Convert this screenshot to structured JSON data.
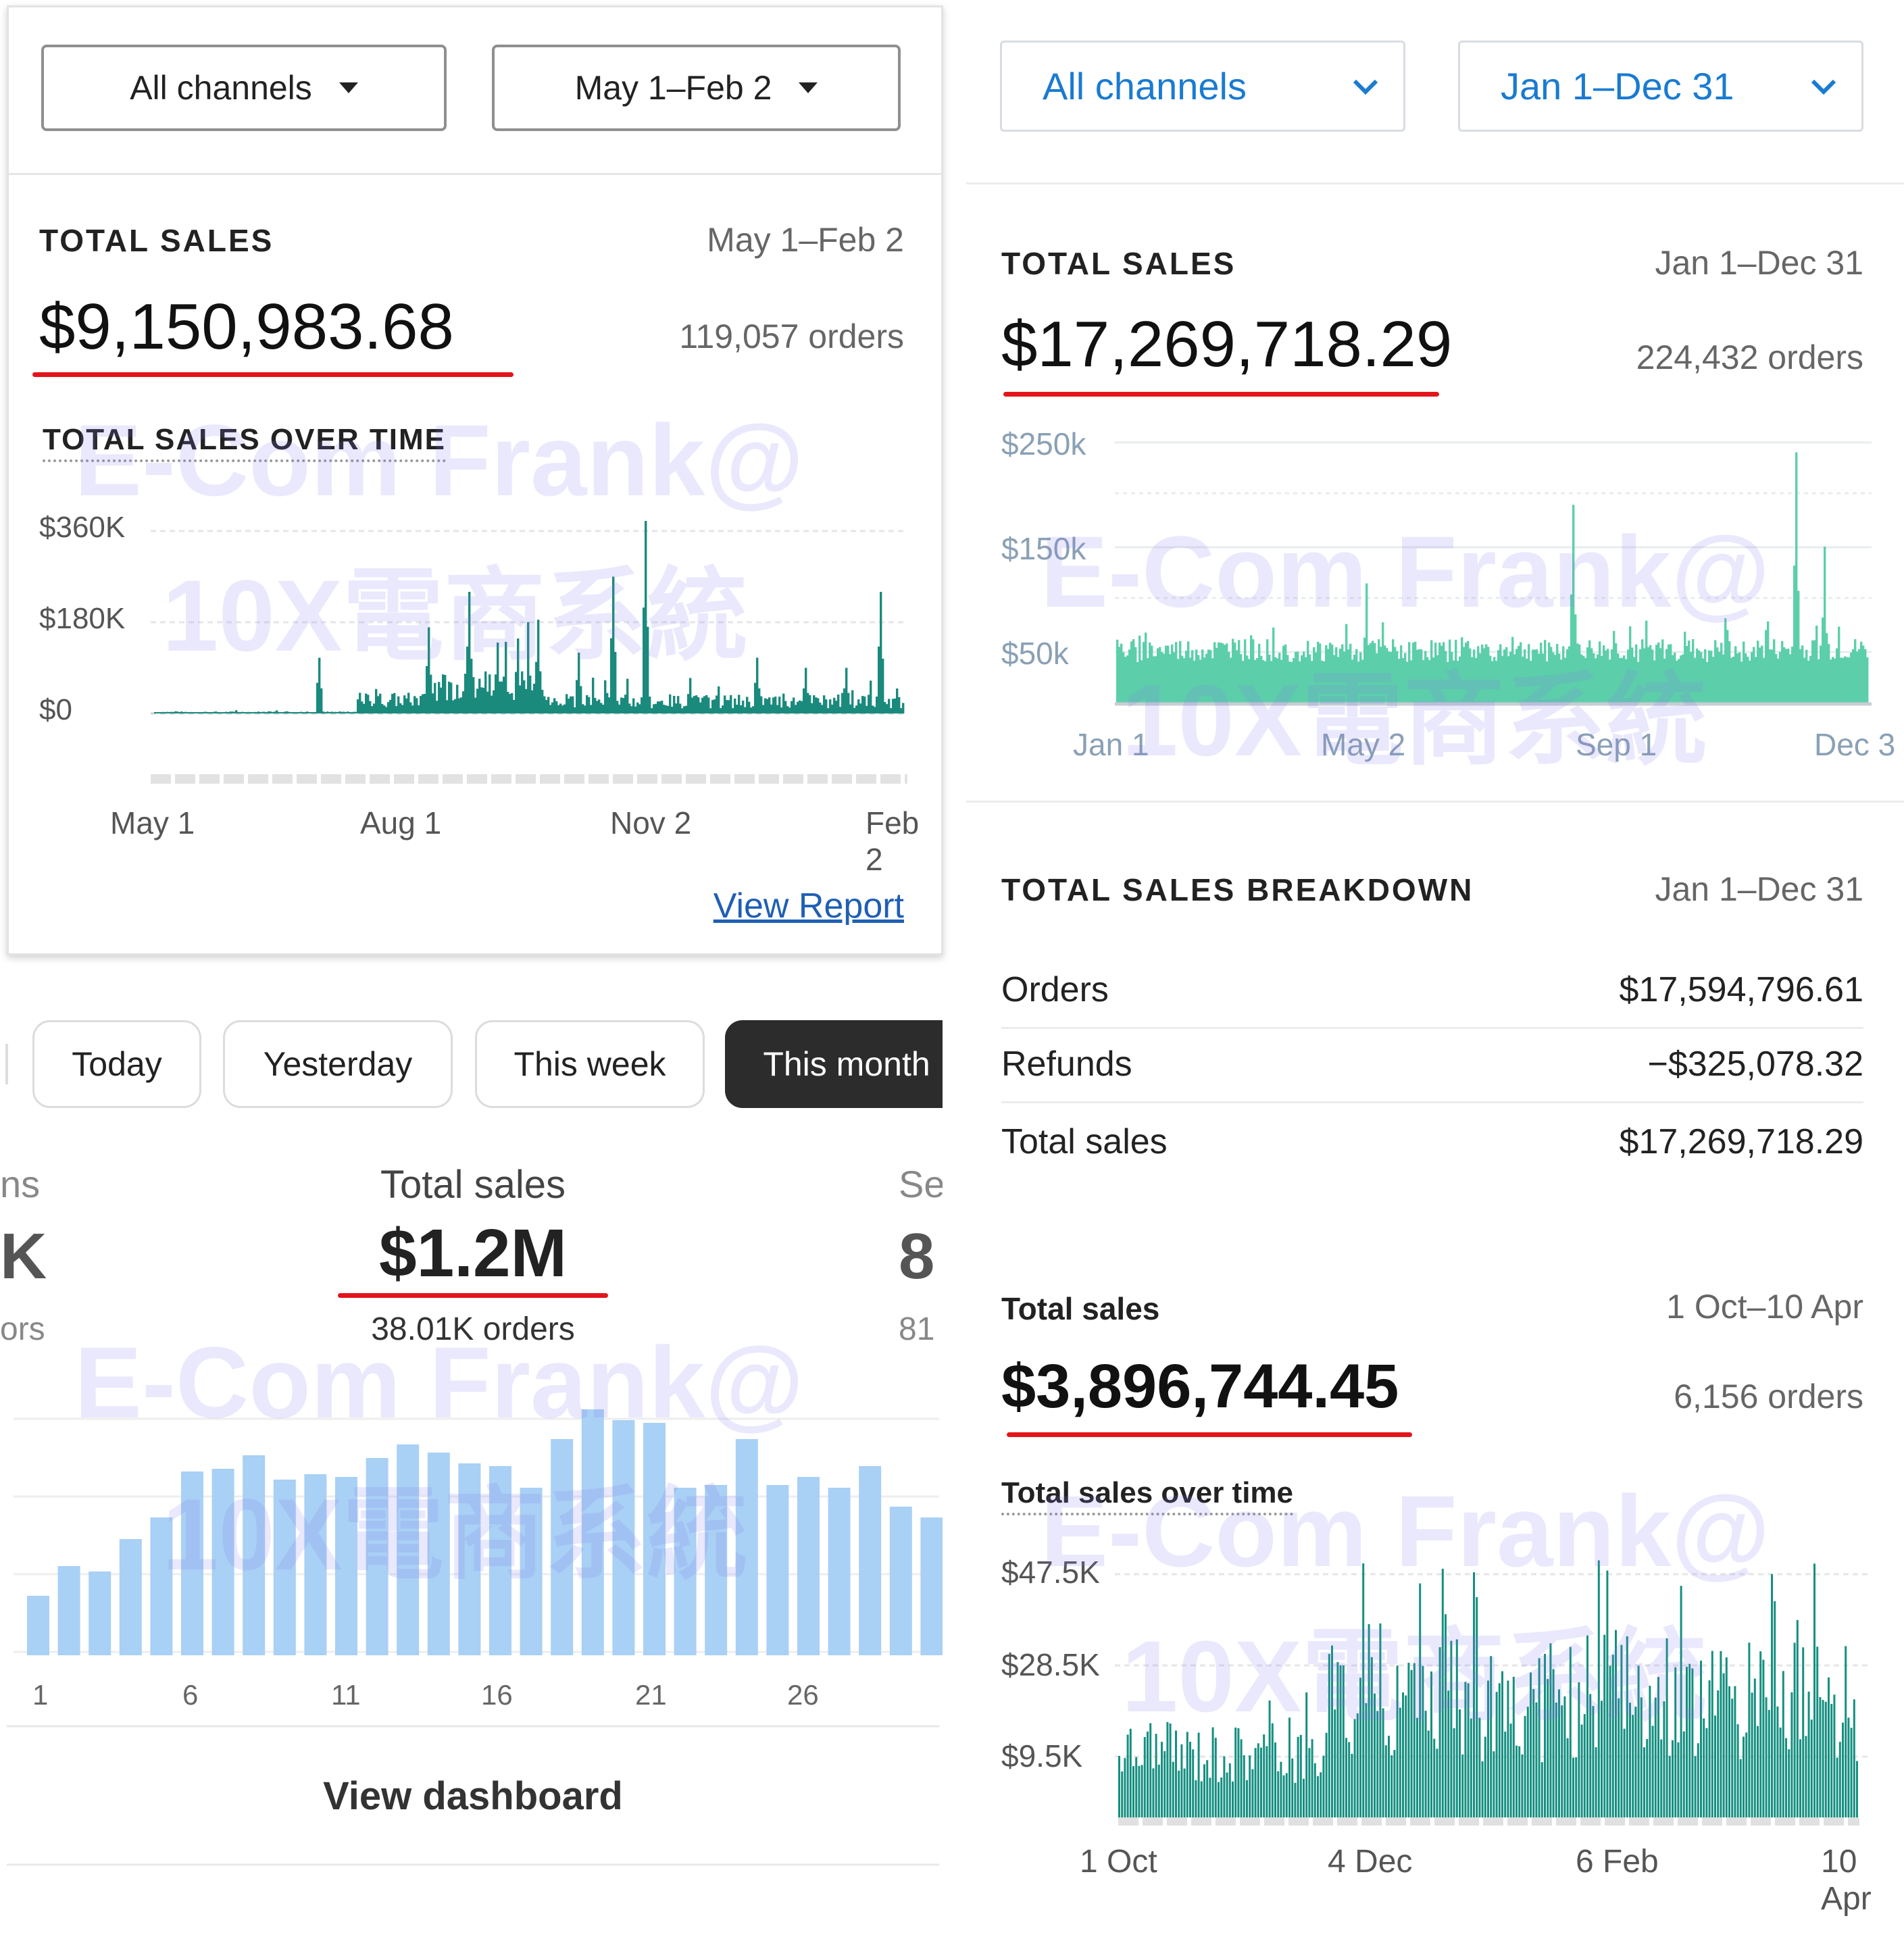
{
  "panel1": {
    "channel_select": "All channels",
    "date_select": "May 1–Feb 2",
    "card_title": "TOTAL SALES",
    "date_range": "May 1–Feb 2",
    "total": "$9,150,983.68",
    "orders": "119,057 orders",
    "chart_title": "TOTAL SALES OVER TIME",
    "y_ticks": [
      "$360K",
      "$180K",
      "$0"
    ],
    "x_ticks": [
      "May 1",
      "Aug 1",
      "Nov 2",
      "Feb 2"
    ],
    "link": "View Report",
    "chart_data": {
      "type": "area",
      "x_range": [
        "May 1",
        "Feb 2"
      ],
      "ylim": [
        0,
        360000
      ],
      "peaks": [
        {
          "x": "Jul 1",
          "y": 110000
        },
        {
          "x": "Aug 10",
          "y": 170000
        },
        {
          "x": "Aug 25",
          "y": 240000
        },
        {
          "x": "Sep 5",
          "y": 140000
        },
        {
          "x": "Sep 20",
          "y": 185000
        },
        {
          "x": "Oct 5",
          "y": 120000
        },
        {
          "x": "Oct 18",
          "y": 270000
        },
        {
          "x": "Oct 30",
          "y": 380000
        },
        {
          "x": "Nov 15",
          "y": 70000
        },
        {
          "x": "Dec 10",
          "y": 110000
        },
        {
          "x": "Dec 28",
          "y": 90000
        },
        {
          "x": "Jan 12",
          "y": 90000
        },
        {
          "x": "Jan 25",
          "y": 240000
        }
      ],
      "color": "#1a8a7d"
    }
  },
  "panel2": {
    "channel_select": "All channels",
    "date_select": "Jan 1–Dec 31",
    "card_title": "TOTAL SALES",
    "date_range": "Jan 1–Dec 31",
    "total": "$17,269,718.29",
    "orders": "224,432 orders",
    "y_ticks": [
      "$250k",
      "$150k",
      "$50k"
    ],
    "x_ticks": [
      "Jan 1",
      "May 2",
      "Sep 1",
      "Dec 3"
    ],
    "chart_data": {
      "type": "area",
      "x_range": [
        "Jan 1",
        "Dec 31"
      ],
      "ylim": [
        0,
        250000
      ],
      "peaks": [
        {
          "x": "May 2",
          "y": 115000
        },
        {
          "x": "Aug 10",
          "y": 190000
        },
        {
          "x": "Nov 27",
          "y": 240000
        },
        {
          "x": "Dec 10",
          "y": 150000
        }
      ],
      "baseline": 40000,
      "color": "#5ccfaa"
    },
    "breakdown": {
      "title": "TOTAL SALES BREAKDOWN",
      "date_range": "Jan 1–Dec 31",
      "rows": [
        {
          "label": "Orders",
          "value": "$17,594,796.61"
        },
        {
          "label": "Refunds",
          "value": "−$325,078.32"
        },
        {
          "label": "Total sales",
          "value": "$17,269,718.29"
        }
      ]
    }
  },
  "panel3": {
    "chips": [
      "Today",
      "Yesterday",
      "This week",
      "This month"
    ],
    "active_chip": "This month",
    "left_stub": {
      "label": "ns",
      "value": "K",
      "sub": "ors"
    },
    "metric_label": "Total sales",
    "metric_value": "$1.2M",
    "metric_sub": "38.01K orders",
    "right_stub": {
      "label": "Se",
      "value": "8",
      "sub": "81"
    },
    "x_ticks": [
      "1",
      "6",
      "11",
      "16",
      "21",
      "26"
    ],
    "link": "View dashboard",
    "chart_data": {
      "type": "bar",
      "categories": [
        "1",
        "2",
        "3",
        "4",
        "5",
        "6",
        "7",
        "8",
        "9",
        "10",
        "11",
        "12",
        "13",
        "14",
        "15",
        "16",
        "17",
        "18",
        "19",
        "20",
        "21",
        "22",
        "23",
        "24",
        "25",
        "26",
        "27",
        "28",
        "29",
        "30"
      ],
      "values": [
        22,
        33,
        31,
        43,
        51,
        68,
        69,
        74,
        65,
        67,
        66,
        73,
        78,
        75,
        71,
        70,
        62,
        80,
        91,
        87,
        86,
        62,
        63,
        80,
        63,
        66,
        62,
        70,
        55,
        51
      ],
      "ylim": [
        0,
        100
      ],
      "color": "#a9d0f5"
    }
  },
  "panel4": {
    "card_title": "Total sales",
    "date_range": "1 Oct–10 Apr",
    "total": "$3,896,744.45",
    "orders": "6,156 orders",
    "chart_title": "Total sales over time",
    "y_ticks": [
      "$47.5K",
      "$28.5K",
      "$9.5K"
    ],
    "x_ticks": [
      "1 Oct",
      "4 Dec",
      "6 Feb",
      "10 Apr"
    ],
    "chart_data": {
      "type": "bar",
      "x_range": [
        "1 Oct",
        "10 Apr"
      ],
      "ylim": [
        0,
        47500
      ],
      "peaks": [
        {
          "x": "Dec 3",
          "y": 47000
        },
        {
          "x": "Mar 20",
          "y": 40000
        }
      ],
      "color": "#148f80"
    }
  },
  "watermark": {
    "line1": "E-Com Frank@",
    "line2": "10X電商系統"
  }
}
